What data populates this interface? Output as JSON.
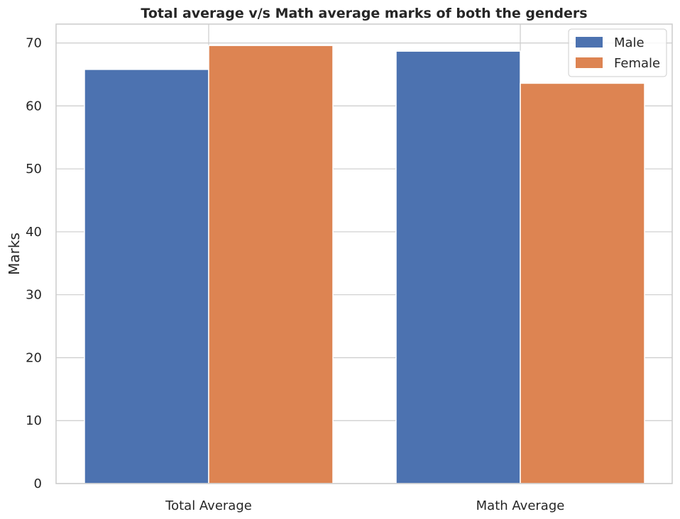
{
  "chart_data": {
    "type": "bar",
    "title": "Total average v/s Math average marks of both the genders",
    "xlabel": "",
    "ylabel": "Marks",
    "categories": [
      "Total Average",
      "Math Average"
    ],
    "series": [
      {
        "name": "Male",
        "values": [
          65.8,
          68.7
        ],
        "color": "#4c72b0"
      },
      {
        "name": "Female",
        "values": [
          69.6,
          63.6
        ],
        "color": "#dd8452"
      }
    ],
    "ylim": [
      0,
      73
    ],
    "yticks": [
      0,
      10,
      20,
      30,
      40,
      50,
      60,
      70
    ],
    "grid": true,
    "legend": "top-right"
  }
}
